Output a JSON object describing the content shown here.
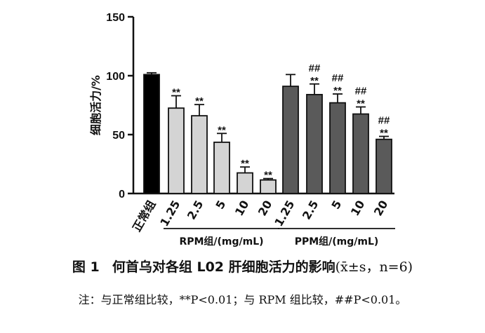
{
  "chart_data": {
    "type": "bar",
    "ylabel": "细胞活力/%",
    "ylim": [
      0,
      150
    ],
    "yticks": [
      0,
      50,
      100,
      150
    ],
    "grid": false,
    "categories": [
      "正常组",
      "1.25",
      "2.5",
      "5",
      "10",
      "20",
      "1.25",
      "2.5",
      "5",
      "10",
      "20"
    ],
    "values": [
      101,
      72.5,
      66,
      43.5,
      17.5,
      11.5,
      91,
      84,
      77,
      67.5,
      46
    ],
    "errors": [
      1.5,
      10.5,
      9.5,
      7.5,
      5,
      1.2,
      10,
      9,
      7.5,
      6,
      2.5
    ],
    "significance_star": [
      "",
      "**",
      "**",
      "**",
      "**",
      "**",
      "",
      "**",
      "**",
      "**",
      "**"
    ],
    "significance_hash": [
      "",
      "",
      "",
      "",
      "",
      "",
      "",
      "##",
      "##",
      "##",
      "##"
    ],
    "bar_colors": [
      "#000000",
      "#d4d4d4",
      "#d4d4d4",
      "#d4d4d4",
      "#d4d4d4",
      "#d4d4d4",
      "#5a5a5a",
      "#5a5a5a",
      "#5a5a5a",
      "#5a5a5a",
      "#5a5a5a"
    ],
    "groups": [
      {
        "label": "RPM组/(mg/mL)",
        "first": 1,
        "last": 5
      },
      {
        "label": "PPM组/(mg/mL)",
        "first": 6,
        "last": 10
      }
    ]
  },
  "caption": {
    "title_prefix": "图 1",
    "title_main": "何首乌对各组 L02 肝细胞活力的影响",
    "title_stats": "(x̄±s，n=6)",
    "note": "注：与正常组比较，**P<0.01；与 RPM 组比较，##P<0.01。"
  }
}
